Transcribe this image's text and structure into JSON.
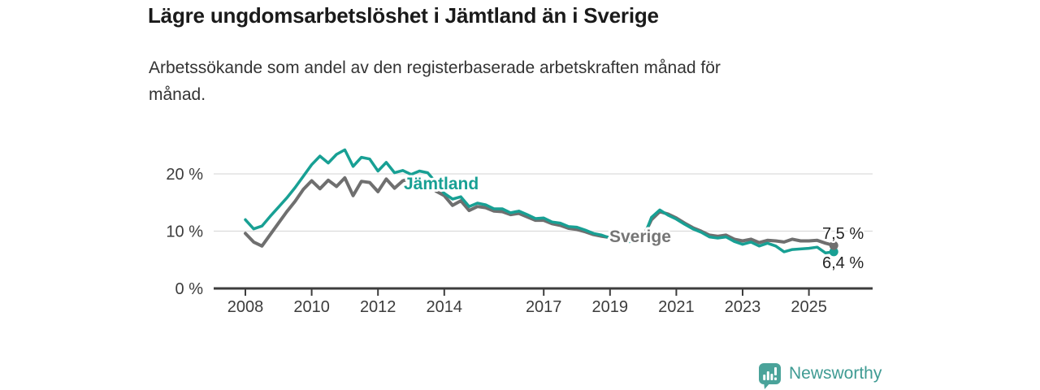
{
  "header": {
    "title": "Lägre ungdomsarbetslöshet i Jämtland än i Sverige",
    "subtitle_lines": [
      "Arbetssökande som andel av den registerbaserade arbetskraften månad för",
      "månad."
    ]
  },
  "chart_data": {
    "type": "line",
    "title": "Lägre ungdomsarbetslöshet i Jämtland än i Sverige",
    "subtitle": "Arbetssökande som andel av den registerbaserade arbetskraften månad för månad.",
    "x_unit": "year (quarterly samples)",
    "x_start": 2008.0,
    "x_step": 0.25,
    "x_ticks": [
      2008,
      2010,
      2012,
      2014,
      2017,
      2019,
      2021,
      2023,
      2025
    ],
    "y_ticks": [
      {
        "value": 0,
        "label": "0 %"
      },
      {
        "value": 10,
        "label": "10 %"
      },
      {
        "value": 20,
        "label": "20 %"
      }
    ],
    "ylim": [
      0,
      26
    ],
    "grid": "horizontal",
    "legend_position": "inline-labels",
    "series": [
      {
        "name": "Sverige",
        "color": "#6f6f6f",
        "end_label": "7,5 %",
        "end_value": 7.5,
        "values": [
          9.6,
          8.1,
          7.4,
          9.4,
          11.4,
          13.4,
          15.2,
          17.3,
          18.8,
          17.4,
          18.9,
          17.8,
          19.3,
          16.2,
          18.7,
          18.5,
          16.9,
          19.1,
          17.5,
          18.8,
          19.2,
          17.8,
          18.8,
          17.0,
          16.2,
          14.5,
          15.3,
          13.6,
          14.3,
          14.1,
          13.5,
          13.4,
          12.9,
          13.1,
          12.5,
          11.9,
          11.9,
          11.3,
          11.0,
          10.5,
          10.3,
          9.9,
          9.4,
          9.1,
          8.9,
          8.7,
          8.5,
          8.6,
          9.0,
          12.0,
          13.4,
          13.0,
          12.3,
          11.4,
          10.6,
          10.0,
          9.3,
          9.1,
          9.3,
          8.6,
          8.3,
          8.6,
          8.0,
          8.4,
          8.3,
          8.1,
          8.6,
          8.3,
          8.3,
          8.4,
          7.9,
          7.5
        ]
      },
      {
        "name": "Jämtland",
        "color": "#18a094",
        "end_label": "6,4 %",
        "end_value": 6.4,
        "values": [
          12.0,
          10.4,
          10.9,
          12.6,
          14.2,
          15.8,
          17.6,
          19.6,
          21.6,
          23.1,
          21.9,
          23.4,
          24.2,
          21.3,
          22.9,
          22.6,
          20.5,
          22.0,
          20.2,
          20.6,
          19.9,
          20.5,
          20.2,
          18.5,
          16.6,
          15.6,
          16.0,
          14.3,
          14.9,
          14.6,
          13.9,
          13.9,
          13.2,
          13.5,
          12.9,
          12.2,
          12.3,
          11.6,
          11.4,
          10.8,
          10.7,
          10.2,
          9.6,
          9.3,
          8.8,
          8.5,
          8.1,
          8.3,
          8.7,
          12.4,
          13.7,
          12.8,
          12.1,
          11.2,
          10.4,
          9.8,
          9.0,
          8.8,
          9.0,
          8.2,
          7.7,
          8.1,
          7.4,
          7.9,
          7.4,
          6.4,
          6.8,
          6.9,
          7.0,
          7.2,
          6.2,
          6.4
        ]
      }
    ]
  },
  "footer": {
    "brand": "Newsworthy",
    "logo_icon": "bar-chart-speech-bubble-icon",
    "brand_color": "#3f9b93"
  }
}
